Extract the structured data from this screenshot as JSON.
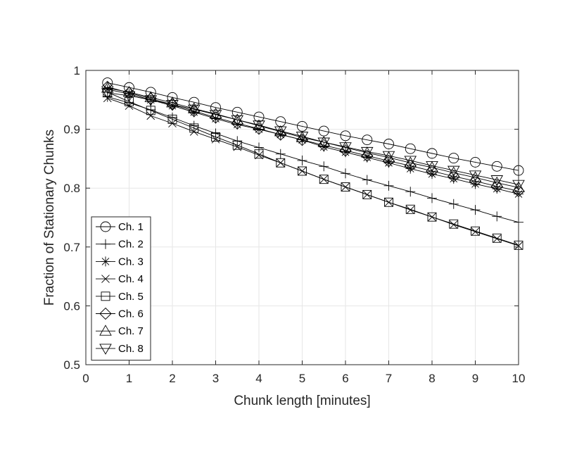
{
  "chart_data": {
    "type": "line",
    "title": "",
    "xlabel": "Chunk length [minutes]",
    "ylabel": "Fraction of Stationary Chunks",
    "xlim": [
      0,
      10
    ],
    "ylim": [
      0.5,
      1
    ],
    "xticks": [
      "0",
      "1",
      "2",
      "3",
      "4",
      "5",
      "6",
      "7",
      "8",
      "9",
      "10"
    ],
    "yticks": [
      "0.5",
      "0.6",
      "0.7",
      "0.8",
      "0.9",
      "1"
    ],
    "grid": true,
    "legend_position": "bottom-left",
    "x": [
      0.5,
      1,
      1.5,
      2,
      2.5,
      3,
      3.5,
      4,
      4.5,
      5,
      5.5,
      6,
      6.5,
      7,
      7.5,
      8,
      8.5,
      9,
      9.5,
      10
    ],
    "series": [
      {
        "name": "Ch. 1",
        "marker": "circle",
        "values": [
          0.979,
          0.971,
          0.963,
          0.954,
          0.946,
          0.937,
          0.929,
          0.921,
          0.913,
          0.905,
          0.897,
          0.889,
          0.882,
          0.875,
          0.867,
          0.859,
          0.851,
          0.844,
          0.837,
          0.83
        ]
      },
      {
        "name": "Ch. 2",
        "marker": "plus",
        "values": [
          0.955,
          0.945,
          0.933,
          0.92,
          0.906,
          0.893,
          0.88,
          0.869,
          0.858,
          0.847,
          0.837,
          0.825,
          0.814,
          0.804,
          0.794,
          0.783,
          0.773,
          0.763,
          0.752,
          0.742
        ]
      },
      {
        "name": "Ch. 3",
        "marker": "asterisk",
        "values": [
          0.968,
          0.96,
          0.95,
          0.94,
          0.929,
          0.918,
          0.908,
          0.9,
          0.891,
          0.882,
          0.87,
          0.861,
          0.852,
          0.843,
          0.833,
          0.824,
          0.816,
          0.807,
          0.799,
          0.79
        ]
      },
      {
        "name": "Ch. 4",
        "marker": "x",
        "values": [
          0.953,
          0.94,
          0.923,
          0.91,
          0.896,
          0.883,
          0.87,
          0.856,
          0.843,
          0.829,
          0.815,
          0.802,
          0.789,
          0.776,
          0.763,
          0.751,
          0.738,
          0.726,
          0.714,
          0.702
        ]
      },
      {
        "name": "Ch. 5",
        "marker": "square",
        "values": [
          0.963,
          0.947,
          0.932,
          0.917,
          0.902,
          0.887,
          0.873,
          0.858,
          0.843,
          0.829,
          0.815,
          0.802,
          0.789,
          0.776,
          0.764,
          0.751,
          0.739,
          0.727,
          0.715,
          0.703
        ]
      },
      {
        "name": "Ch. 6",
        "marker": "diamond",
        "values": [
          0.972,
          0.962,
          0.952,
          0.942,
          0.931,
          0.92,
          0.91,
          0.901,
          0.891,
          0.882,
          0.873,
          0.864,
          0.855,
          0.846,
          0.838,
          0.829,
          0.82,
          0.812,
          0.803,
          0.795
        ]
      },
      {
        "name": "Ch. 7",
        "marker": "triangle-up",
        "values": [
          0.97,
          0.963,
          0.954,
          0.945,
          0.935,
          0.926,
          0.916,
          0.906,
          0.896,
          0.886,
          0.878,
          0.869,
          0.86,
          0.852,
          0.843,
          0.835,
          0.826,
          0.818,
          0.809,
          0.801
        ]
      },
      {
        "name": "Ch. 8",
        "marker": "triangle-down",
        "values": [
          0.962,
          0.957,
          0.95,
          0.942,
          0.934,
          0.925,
          0.916,
          0.907,
          0.897,
          0.888,
          0.878,
          0.87,
          0.862,
          0.855,
          0.847,
          0.838,
          0.83,
          0.822,
          0.814,
          0.806
        ]
      }
    ]
  }
}
